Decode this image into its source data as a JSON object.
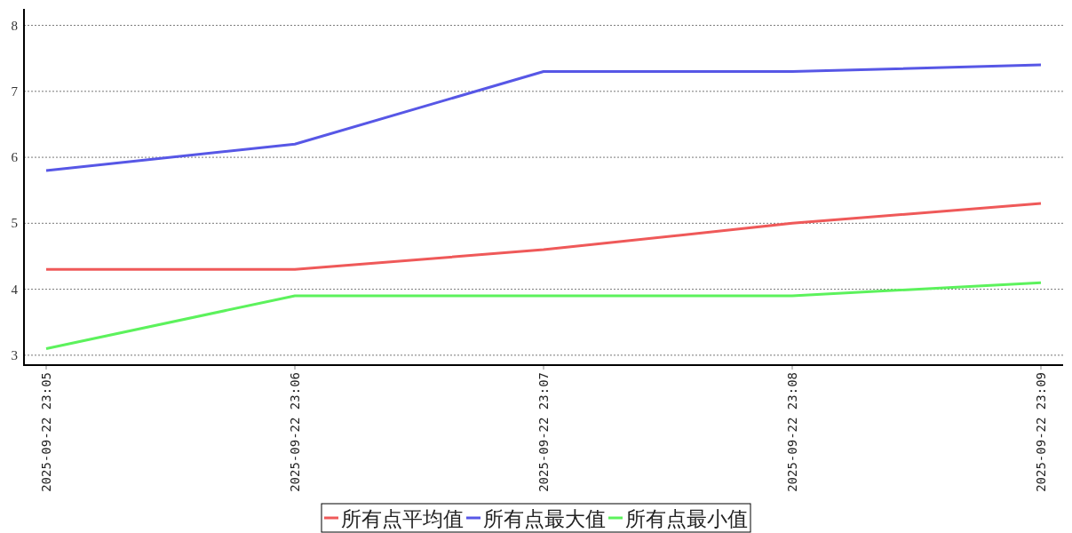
{
  "chart_data": {
    "type": "line",
    "categories": [
      "2025-09-22 23:05",
      "2025-09-22 23:06",
      "2025-09-22 23:07",
      "2025-09-22 23:08",
      "2025-09-22 23:09"
    ],
    "series": [
      {
        "name": "所有点平均值",
        "color": "#ef5959",
        "values": [
          4.3,
          4.3,
          4.6,
          5.0,
          5.3
        ]
      },
      {
        "name": "所有点最大值",
        "color": "#5757e6",
        "values": [
          5.8,
          6.2,
          7.3,
          7.3,
          7.4
        ]
      },
      {
        "name": "所有点最小值",
        "color": "#5cf25c",
        "values": [
          3.1,
          3.9,
          3.9,
          3.9,
          4.1
        ]
      }
    ],
    "ylim": [
      2.85,
      8.25
    ],
    "yticks": [
      3,
      4,
      5,
      6,
      7,
      8
    ],
    "grid": "y",
    "legend": "bottom"
  }
}
